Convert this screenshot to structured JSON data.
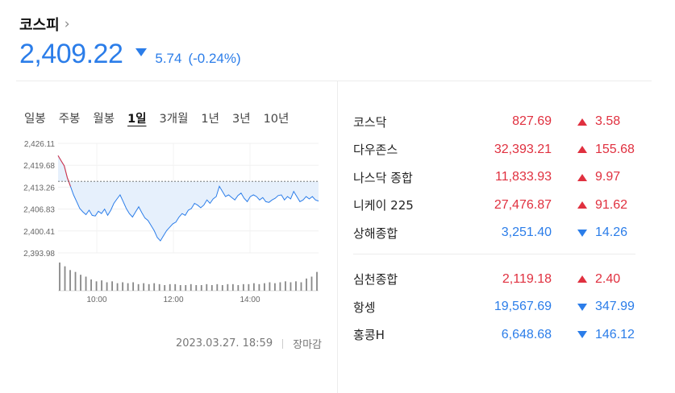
{
  "header": {
    "title": "코스피",
    "chevron": "›",
    "price": "2,409.22",
    "change": "5.74",
    "change_pct": "(-0.24%)",
    "direction": "down"
  },
  "tabs": [
    {
      "label": "일봉",
      "active": false
    },
    {
      "label": "주봉",
      "active": false
    },
    {
      "label": "월봉",
      "active": false
    },
    {
      "label": "1일",
      "active": true
    },
    {
      "label": "3개월",
      "active": false
    },
    {
      "label": "1년",
      "active": false
    },
    {
      "label": "3년",
      "active": false
    },
    {
      "label": "10년",
      "active": false
    }
  ],
  "chart_data": {
    "type": "area",
    "y_ticks": [
      "2,426.11",
      "2,419.68",
      "2,413.26",
      "2,406.83",
      "2,400.41",
      "2,393.98"
    ],
    "y_tick_values": [
      2426.11,
      2419.68,
      2413.26,
      2406.83,
      2400.41,
      2393.98
    ],
    "x_ticks": [
      "10:00",
      "12:00",
      "14:00"
    ],
    "ylim": [
      2393.98,
      2426.11
    ],
    "prev_close": 2414.96,
    "series": [
      {
        "values": [
          2422.5,
          2421.0,
          2419.5,
          2416.0,
          2413.5,
          2411.0,
          2409.0,
          2407.0,
          2406.0,
          2405.2,
          2406.5,
          2405.0,
          2404.8,
          2406.2,
          2405.5,
          2406.8,
          2405.0,
          2406.5,
          2408.5,
          2409.8,
          2411.0,
          2409.0,
          2407.0,
          2405.5,
          2404.5,
          2406.0,
          2407.5,
          2405.8,
          2404.2,
          2403.5,
          2402.0,
          2400.5,
          2398.5,
          2397.5,
          2399.0,
          2400.5,
          2401.5,
          2402.5,
          2403.0,
          2404.5,
          2405.5,
          2405.0,
          2406.5,
          2407.0,
          2408.5,
          2408.0,
          2407.2,
          2408.0,
          2409.5,
          2408.5,
          2409.8,
          2410.5,
          2413.5,
          2412.0,
          2410.5,
          2411.0,
          2410.2,
          2409.5,
          2410.8,
          2411.5,
          2410.0,
          2409.0,
          2410.5,
          2411.0,
          2410.5,
          2409.5,
          2410.2,
          2409.0,
          2408.8,
          2409.5,
          2410.0,
          2410.8,
          2411.0,
          2409.5,
          2410.5,
          2409.8,
          2412.0,
          2410.5,
          2409.0,
          2409.5,
          2410.5,
          2409.8,
          2410.5,
          2409.5,
          2409.2
        ]
      }
    ],
    "volume": [
      30,
      26,
      22,
      20,
      17,
      15,
      12,
      10,
      11,
      9,
      10,
      8,
      9,
      8,
      9,
      7,
      8,
      7,
      8,
      7,
      6,
      7,
      7,
      6,
      6,
      7,
      6,
      6,
      7,
      6,
      7,
      6,
      7,
      7,
      6,
      7,
      7,
      8,
      7,
      8,
      9,
      8,
      9,
      10,
      9,
      10,
      9,
      13,
      15,
      20
    ]
  },
  "footer": {
    "timestamp": "2023.03.27. 18:59",
    "status": "장마감"
  },
  "indices_group1": [
    {
      "name": "코스닥",
      "value": "827.69",
      "change": "3.58",
      "direction": "up"
    },
    {
      "name": "다우존스",
      "value": "32,393.21",
      "change": "155.68",
      "direction": "up"
    },
    {
      "name": "나스닥 종합",
      "value": "11,833.93",
      "change": "9.97",
      "direction": "up"
    },
    {
      "name": "니케이 225",
      "value": "27,476.87",
      "change": "91.62",
      "direction": "up"
    },
    {
      "name": "상해종합",
      "value": "3,251.40",
      "change": "14.26",
      "direction": "down"
    }
  ],
  "indices_group2": [
    {
      "name": "심천종합",
      "value": "2,119.18",
      "change": "2.40",
      "direction": "up"
    },
    {
      "name": "항셍",
      "value": "19,567.69",
      "change": "347.99",
      "direction": "down"
    },
    {
      "name": "홍콩H",
      "value": "6,648.68",
      "change": "146.12",
      "direction": "down"
    }
  ],
  "colors": {
    "up": "#e0303f",
    "down": "#2b7de9",
    "area_fill": "#e6f0fc",
    "area_fill_up": "#fbe4e6"
  }
}
